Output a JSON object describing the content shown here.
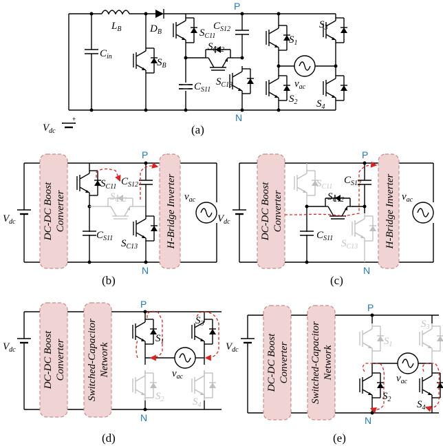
{
  "panel_a": {
    "labels": {
      "vdc": "V",
      "vdc_sub": "dc",
      "lb": "L",
      "lb_sub": "B",
      "db": "D",
      "db_sub": "B",
      "cin": "C",
      "cin_sub": "in",
      "sb": "S",
      "sb_sub": "B",
      "sc11": "S",
      "sc11_sub": "C11",
      "cs12": "C",
      "cs12_sub": "S12",
      "sc12": "S",
      "sc12_sub": "C12",
      "cs11": "C",
      "cs11_sub": "S11",
      "sc13": "S",
      "sc13_sub": "C13",
      "s1": "S",
      "s1_sub": "1",
      "s2": "S",
      "s2_sub": "2",
      "s3": "S",
      "s3_sub": "3",
      "s4": "S",
      "s4_sub": "4",
      "vac": "v",
      "vac_sub": "ac"
    },
    "node_p": "P",
    "node_n": "N",
    "caption": "(a)"
  },
  "panel_b": {
    "block_boost": [
      "DC-DC Boost",
      "Converter"
    ],
    "block_hbridge": "H-Bridge Inverter",
    "caption": "(b)"
  },
  "panel_c": {
    "block_boost": [
      "DC-DC Boost",
      "Converter"
    ],
    "block_hbridge": "H-Bridge Inverter",
    "caption": "(c)"
  },
  "panel_d": {
    "block_boost": [
      "DC-DC Boost",
      "Converter"
    ],
    "block_sc": [
      "Switched-Capacitor",
      "Network"
    ],
    "caption": "(d)"
  },
  "panel_e": {
    "block_boost": [
      "DC-DC Boost",
      "Converter"
    ],
    "block_sc": [
      "Switched-Capacitor",
      "Network"
    ],
    "caption": "(e)"
  },
  "colors": {
    "node_label": "#1f78c8",
    "current_path": "#e0201c",
    "block_fill": "#f0d4d4",
    "inactive": "#bdbdbd"
  }
}
